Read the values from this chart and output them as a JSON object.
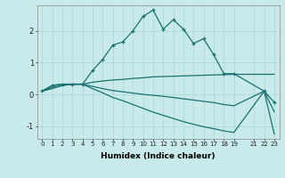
{
  "xlabel": "Humidex (Indice chaleur)",
  "bg_color": "#c8eaea",
  "grid_color": "#a8d8d8",
  "line_color": "#1a7070",
  "xlim": [
    -0.5,
    23.5
  ],
  "ylim": [
    -1.4,
    2.8
  ],
  "yticks": [
    -1,
    0,
    1,
    2
  ],
  "xticks": [
    0,
    1,
    2,
    3,
    4,
    5,
    6,
    7,
    8,
    9,
    10,
    11,
    12,
    13,
    14,
    15,
    16,
    17,
    18,
    19,
    21,
    22,
    23
  ],
  "line1_x": [
    0,
    1,
    2,
    3,
    4,
    5,
    6,
    7,
    8,
    9,
    10,
    11,
    12,
    13,
    14,
    15,
    16,
    17,
    18,
    19,
    22,
    23
  ],
  "line1_y": [
    0.1,
    0.28,
    0.32,
    0.32,
    0.32,
    0.75,
    1.1,
    1.55,
    1.65,
    2.0,
    2.45,
    2.65,
    2.05,
    2.35,
    2.05,
    1.6,
    1.75,
    1.25,
    0.65,
    0.65,
    0.1,
    -0.25
  ],
  "line2_x": [
    0,
    1,
    2,
    3,
    4,
    5,
    6,
    7,
    8,
    9,
    10,
    11,
    12,
    13,
    14,
    15,
    16,
    17,
    18,
    19,
    22,
    23
  ],
  "line2_y": [
    0.1,
    0.28,
    0.32,
    0.32,
    0.32,
    0.38,
    0.42,
    0.45,
    0.47,
    0.5,
    0.52,
    0.55,
    0.56,
    0.57,
    0.58,
    0.59,
    0.6,
    0.61,
    0.62,
    0.63,
    0.63,
    0.63
  ],
  "line3_x": [
    0,
    1,
    2,
    3,
    4,
    5,
    6,
    7,
    8,
    9,
    10,
    11,
    12,
    13,
    14,
    15,
    16,
    17,
    18,
    19,
    22,
    23
  ],
  "line3_y": [
    0.1,
    0.22,
    0.28,
    0.32,
    0.32,
    0.25,
    0.18,
    0.12,
    0.08,
    0.04,
    0.0,
    -0.03,
    -0.06,
    -0.1,
    -0.14,
    -0.18,
    -0.22,
    -0.26,
    -0.32,
    -0.36,
    0.1,
    -0.55
  ],
  "line4_x": [
    0,
    1,
    2,
    3,
    4,
    5,
    6,
    7,
    8,
    9,
    10,
    11,
    12,
    13,
    14,
    15,
    16,
    17,
    18,
    19,
    22,
    23
  ],
  "line4_y": [
    0.1,
    0.18,
    0.28,
    0.32,
    0.32,
    0.18,
    0.05,
    -0.1,
    -0.2,
    -0.32,
    -0.44,
    -0.56,
    -0.66,
    -0.76,
    -0.86,
    -0.94,
    -1.02,
    -1.08,
    -1.15,
    -1.2,
    0.1,
    -1.25
  ]
}
